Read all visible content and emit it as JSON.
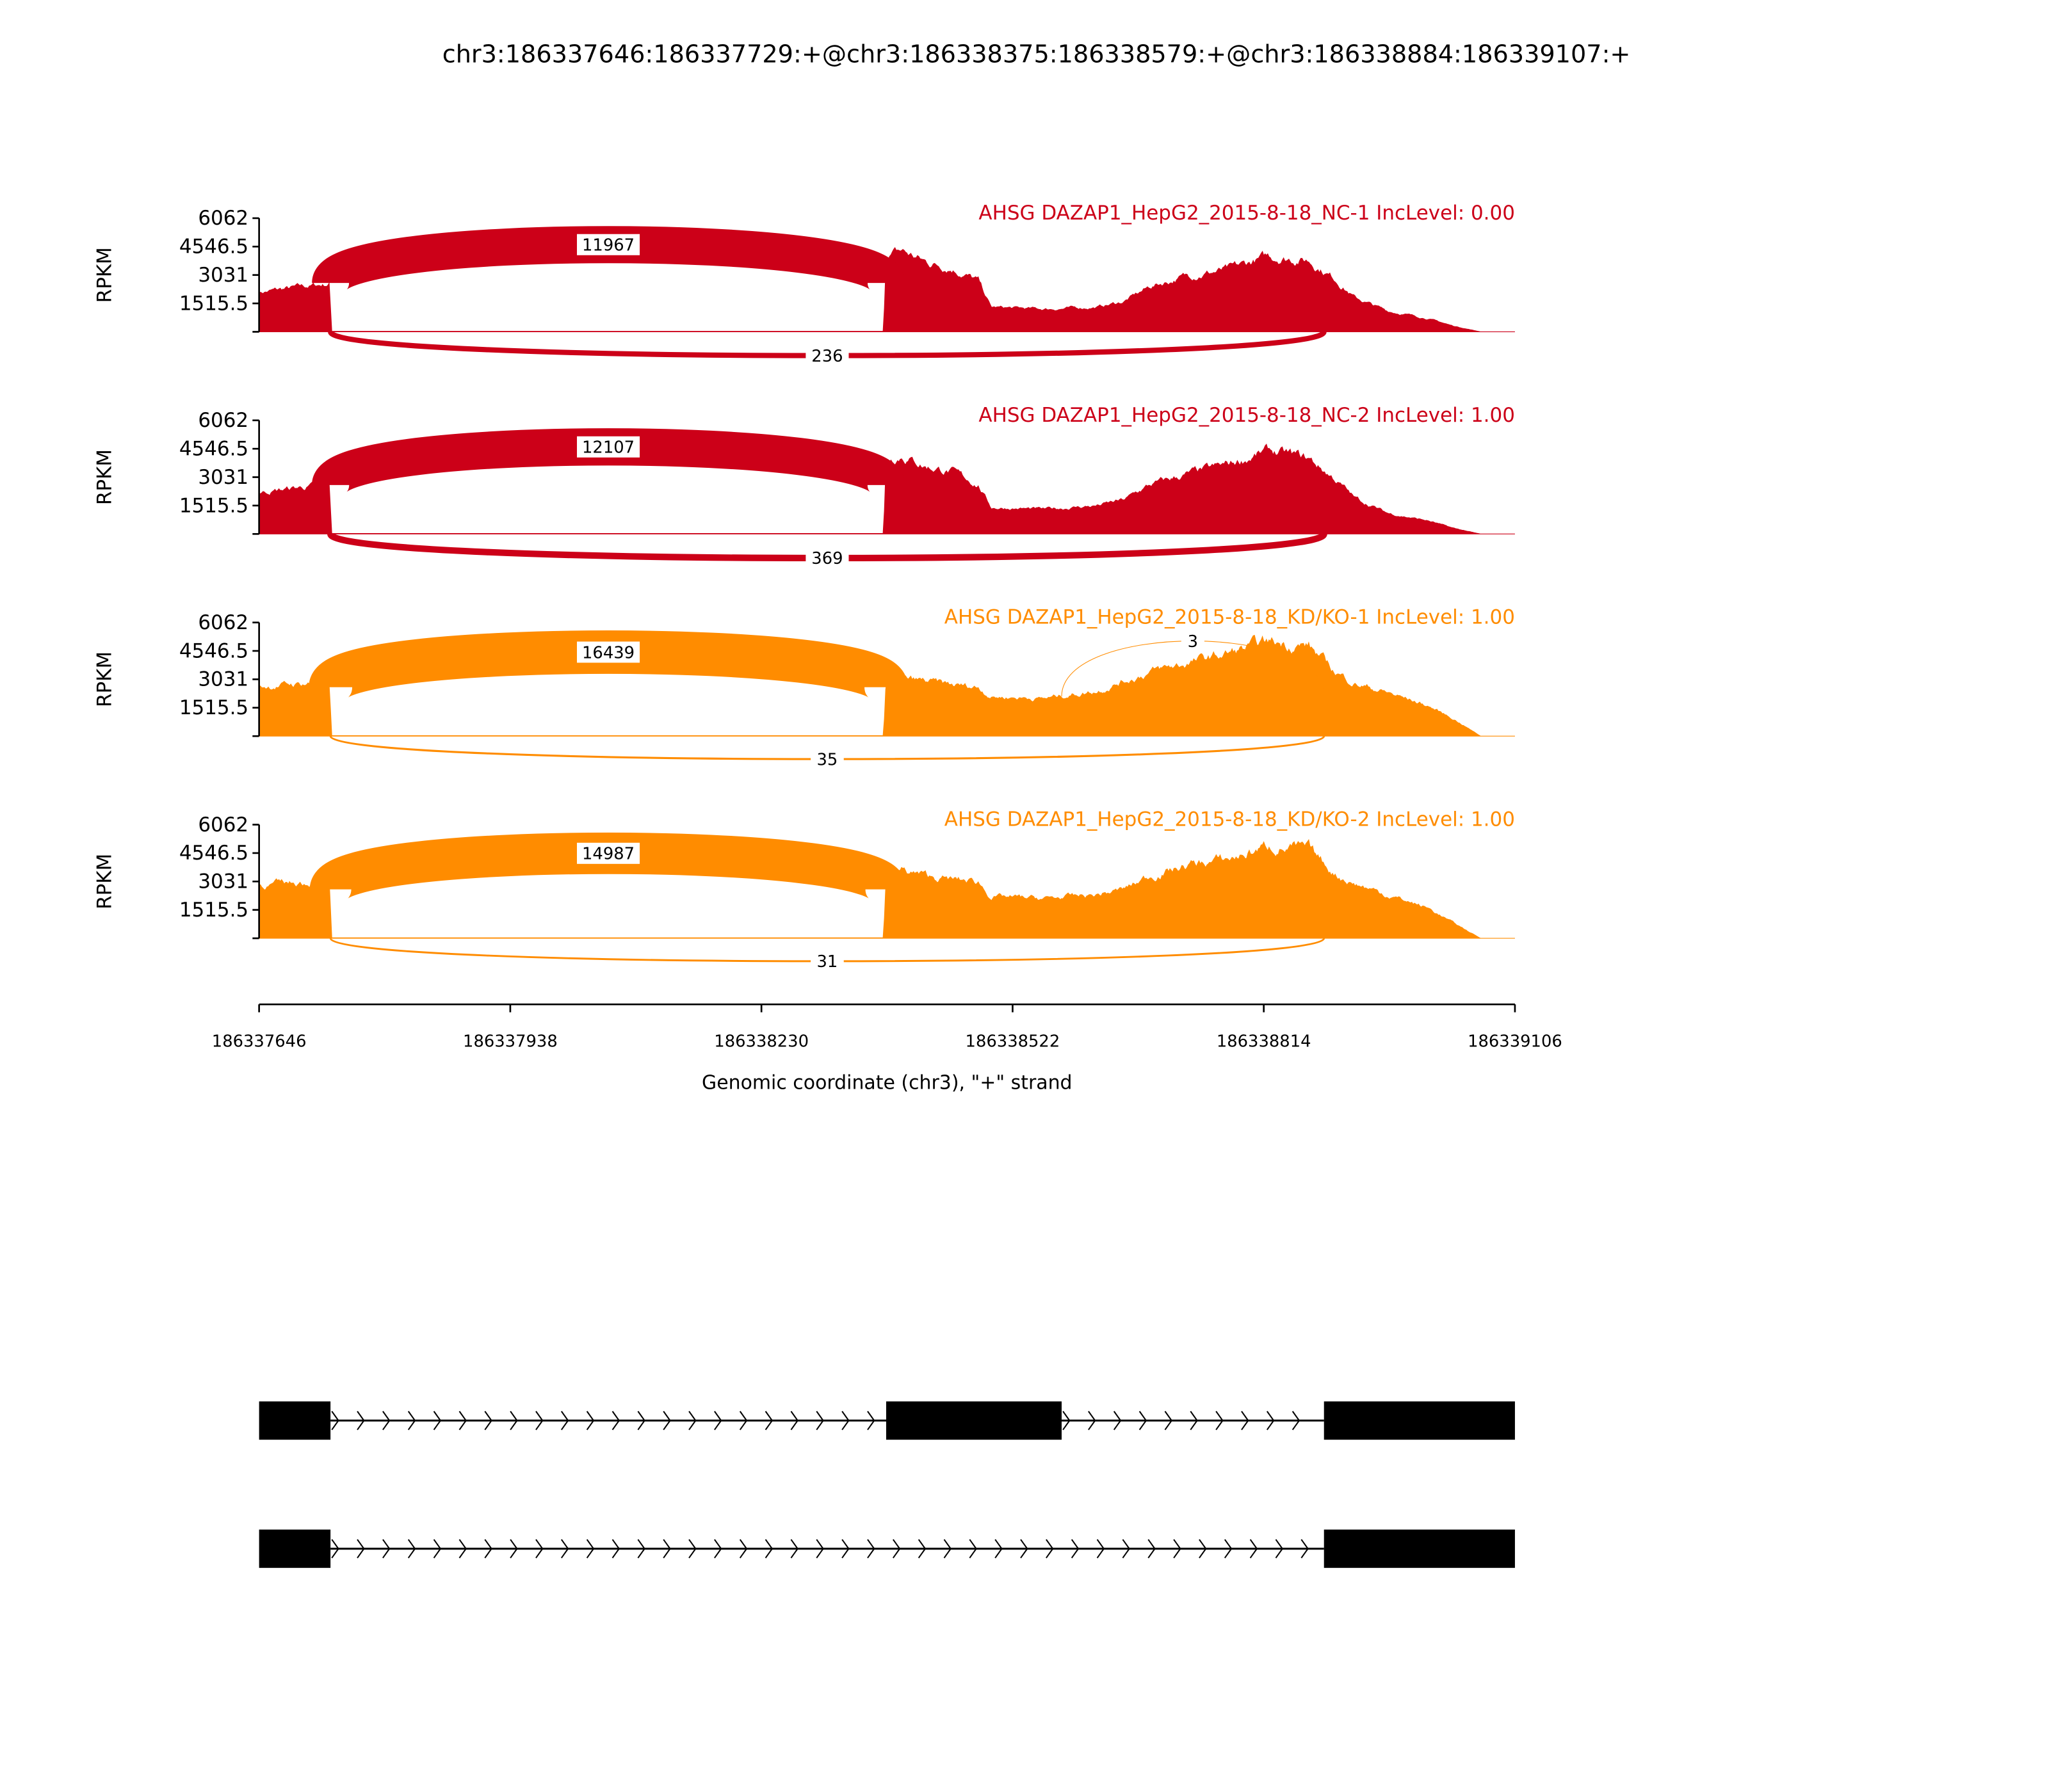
{
  "chart_data": {
    "type": "area",
    "title": "chr3:186337646:186337729:+@chr3:186338375:186338579:+@chr3:186338884:186339107:+",
    "xlabel": "Genomic coordinate (chr3), \"+\" strand",
    "ylabel": "RPKM",
    "xlim": [
      186337646,
      186339106
    ],
    "ylim": [
      0,
      6062
    ],
    "yticks": [
      "1515.5",
      "3031",
      "4546.5",
      "6062"
    ],
    "ytick_values": [
      0,
      1515.5,
      3031,
      4546.5,
      6062
    ],
    "xticks": [
      "186337646",
      "186337938",
      "186338230",
      "186338522",
      "186338814",
      "186339106"
    ],
    "xtick_values": [
      186337646,
      186337938,
      186338230,
      186338522,
      186338814,
      186339106
    ],
    "colors": {
      "NC": "#CC0018",
      "KD": "#FF8C00"
    },
    "coverage_positions": [
      186337646,
      186337700,
      186337728,
      186337730,
      186338372,
      186338375,
      186338393,
      186338421,
      186338451,
      186338482,
      186338497,
      186338559,
      186338620,
      186338651,
      186338682,
      186338728,
      186338774,
      186338820,
      186338866,
      186338897,
      186338920,
      186338958,
      186339005,
      186339035,
      186339066,
      186339106
    ],
    "samples": [
      {
        "label": "AHSG DAZAP1_HepG2_2015-8-18_NC-1 IncLevel: 0.00",
        "group": "NC",
        "coverage": [
          2100,
          2400,
          2550,
          30,
          30,
          4000,
          4300,
          3700,
          3400,
          2700,
          1300,
          1200,
          1300,
          1600,
          2400,
          3000,
          3300,
          4000,
          3800,
          2800,
          1800,
          1100,
          700,
          300,
          0,
          0
        ],
        "junctions": [
          {
            "start": 186337729,
            "end": 186338375,
            "count": "11967",
            "side": "above"
          },
          {
            "start": 186337729,
            "end": 186338884,
            "count": "236",
            "side": "below"
          }
        ]
      },
      {
        "label": "AHSG DAZAP1_HepG2_2015-8-18_NC-2 IncLevel: 1.00",
        "group": "NC",
        "coverage": [
          2200,
          2500,
          2650,
          30,
          30,
          4000,
          4200,
          3600,
          3300,
          2600,
          1400,
          1300,
          1500,
          1800,
          2600,
          3200,
          3700,
          4400,
          4000,
          2900,
          1900,
          1100,
          700,
          300,
          0,
          0
        ],
        "junctions": [
          {
            "start": 186337729,
            "end": 186338375,
            "count": "12107",
            "side": "above"
          },
          {
            "start": 186337729,
            "end": 186338884,
            "count": "369",
            "side": "below"
          }
        ]
      },
      {
        "label": "AHSG DAZAP1_HepG2_2015-8-18_KD/KO-1 IncLevel: 1.00",
        "group": "KD",
        "coverage": [
          2600,
          2800,
          2700,
          30,
          30,
          3000,
          3000,
          2900,
          2700,
          2600,
          2100,
          2000,
          2400,
          2900,
          3400,
          3900,
          4400,
          5000,
          4800,
          3400,
          2800,
          2300,
          1600,
          900,
          0,
          0
        ],
        "junctions": [
          {
            "start": 186337729,
            "end": 186338375,
            "count": "16439",
            "side": "above"
          },
          {
            "start": 186338579,
            "end": 186338884,
            "count": "3",
            "side": "above"
          },
          {
            "start": 186337729,
            "end": 186338884,
            "count": "35",
            "side": "below"
          }
        ]
      },
      {
        "label": "AHSG DAZAP1_HepG2_2015-8-18_KD/KO-2 IncLevel: 1.00",
        "group": "KD",
        "coverage": [
          2800,
          3000,
          2900,
          30,
          30,
          3400,
          3600,
          3300,
          3100,
          3000,
          2200,
          2100,
          2300,
          2600,
          3300,
          3900,
          4200,
          4900,
          4700,
          3400,
          2900,
          2300,
          1600,
          800,
          0,
          0
        ],
        "junctions": [
          {
            "start": 186337729,
            "end": 186338375,
            "count": "14987",
            "side": "above"
          },
          {
            "start": 186337729,
            "end": 186338884,
            "count": "31",
            "side": "below"
          }
        ]
      }
    ],
    "gene_models": [
      {
        "exons": [
          [
            186337646,
            186337729
          ],
          [
            186338375,
            186338579
          ],
          [
            186338884,
            186339107
          ]
        ],
        "strand": "+"
      },
      {
        "exons": [
          [
            186337646,
            186337729
          ],
          [
            186338884,
            186339107
          ]
        ],
        "strand": "+"
      }
    ]
  }
}
